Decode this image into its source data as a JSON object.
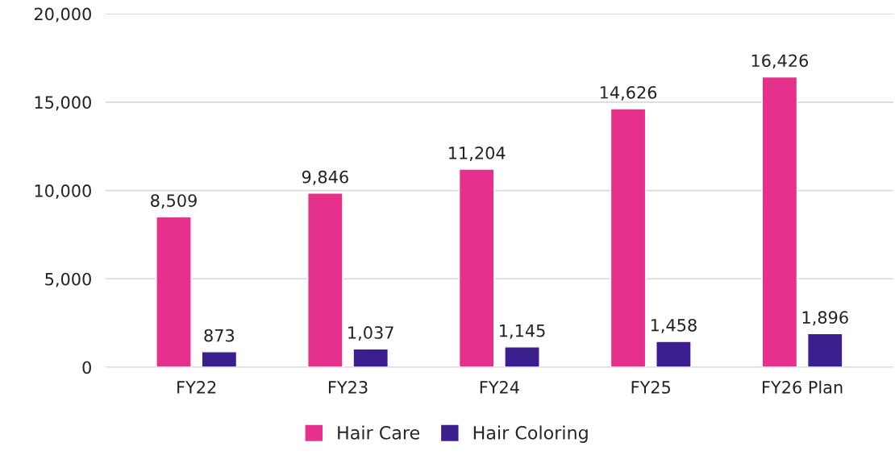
{
  "chart_data": {
    "type": "bar",
    "categories": [
      "FY22",
      "FY23",
      "FY24",
      "FY25",
      "FY26 Plan"
    ],
    "series": [
      {
        "name": "Hair Care",
        "color": "#e5318b",
        "values": [
          8509,
          9846,
          11204,
          14626,
          16426
        ],
        "value_labels": [
          "8,509",
          "9,846",
          "11,204",
          "14,626",
          "16,426"
        ]
      },
      {
        "name": "Hair Coloring",
        "color": "#3c1f8e",
        "values": [
          873,
          1037,
          1145,
          1458,
          1896
        ],
        "value_labels": [
          "873",
          "1,037",
          "1,145",
          "1,458",
          "1,896"
        ]
      }
    ],
    "ylim": [
      0,
      20000
    ],
    "yticks": [
      {
        "value": 0,
        "label": "0"
      },
      {
        "value": 5000,
        "label": "5,000"
      },
      {
        "value": 10000,
        "label": "10,000"
      },
      {
        "value": 15000,
        "label": "15,000"
      },
      {
        "value": 20000,
        "label": "20,000"
      }
    ],
    "grid": "y",
    "legend": "bottom"
  }
}
